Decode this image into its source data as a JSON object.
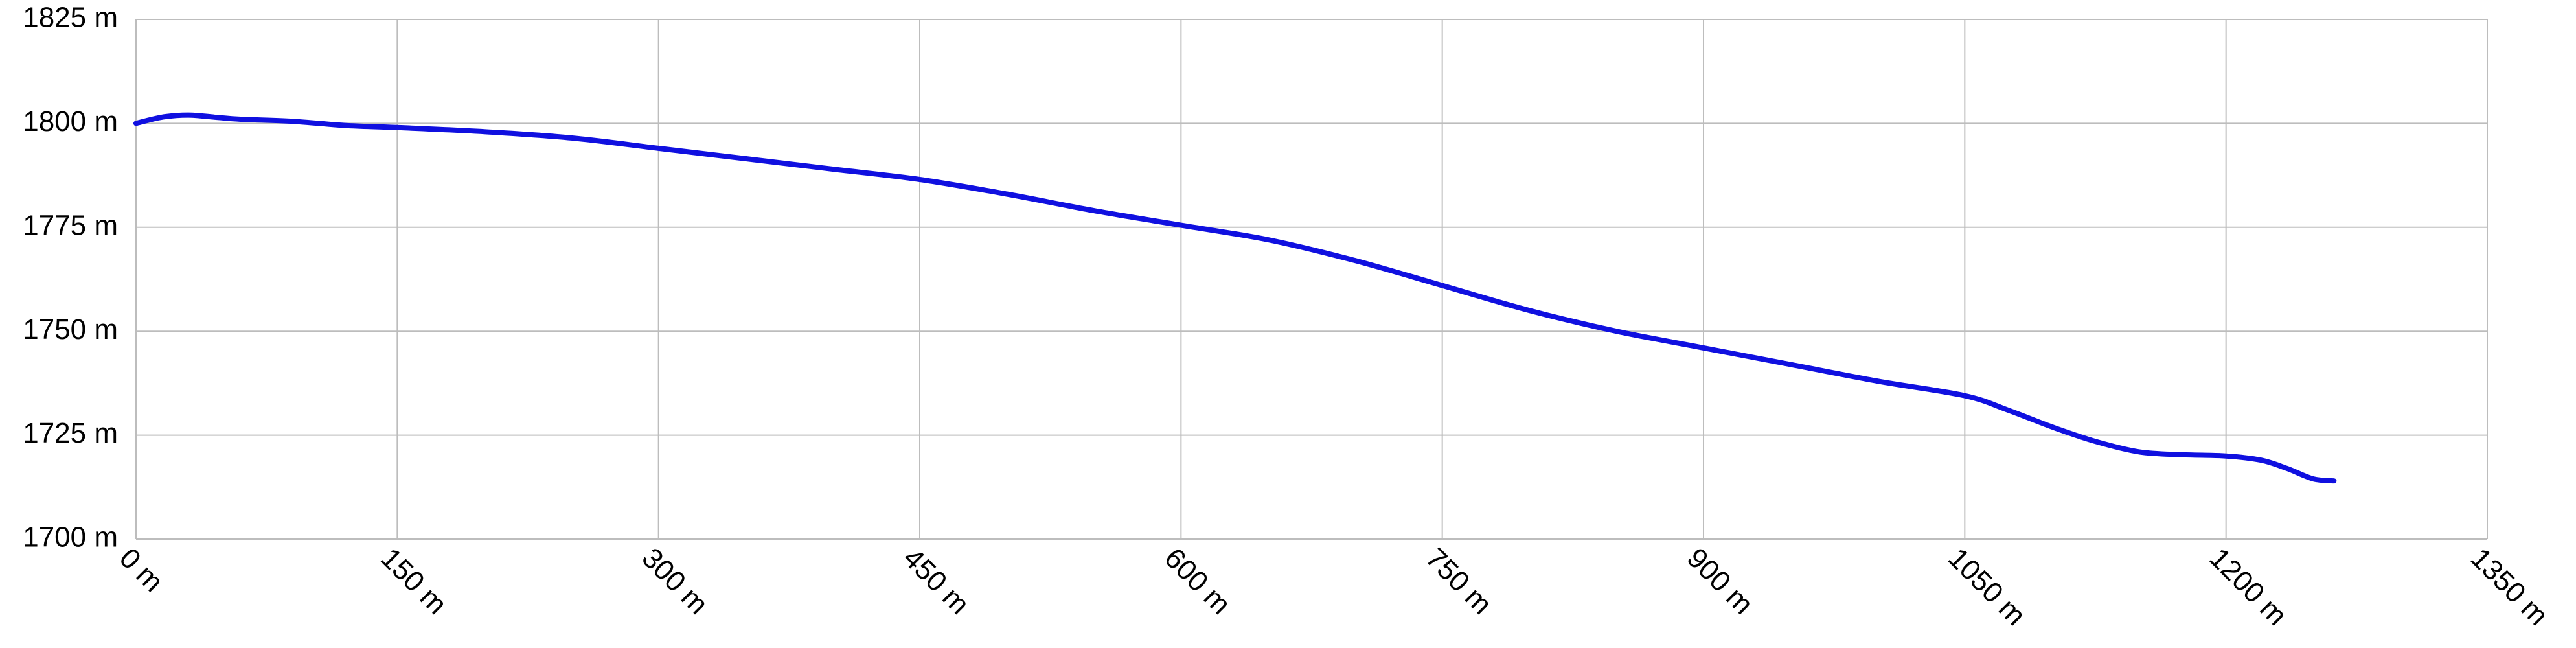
{
  "chart_data": {
    "type": "line",
    "title": "",
    "xlabel": "",
    "ylabel": "",
    "xlim": [
      0,
      1350
    ],
    "ylim": [
      1700,
      1825
    ],
    "x_ticks": [
      0,
      150,
      300,
      450,
      600,
      750,
      900,
      1050,
      1200,
      1350
    ],
    "y_ticks": [
      1700,
      1725,
      1750,
      1775,
      1800,
      1825
    ],
    "x_tick_labels": [
      "0 m",
      "150 m",
      "300 m",
      "450 m",
      "600 m",
      "750 m",
      "900 m",
      "1050 m",
      "1200 m",
      "1350 m"
    ],
    "y_tick_labels": [
      "1700 m",
      "1725 m",
      "1750 m",
      "1775 m",
      "1800 m",
      "1825 m"
    ],
    "grid": true,
    "line_color": "#1010e0",
    "series": [
      {
        "x": [
          0,
          15,
          30,
          45,
          60,
          90,
          120,
          150,
          200,
          250,
          300,
          350,
          400,
          450,
          500,
          550,
          600,
          650,
          700,
          750,
          800,
          850,
          900,
          950,
          1000,
          1050,
          1075,
          1100,
          1125,
          1150,
          1175,
          1200,
          1220,
          1235,
          1250,
          1262
        ],
        "y": [
          1800,
          1801.5,
          1802,
          1801.5,
          1801,
          1800.5,
          1799.5,
          1799,
          1798,
          1796.5,
          1794,
          1791.5,
          1789,
          1786.5,
          1783,
          1779,
          1775.5,
          1772,
          1767,
          1761,
          1755,
          1750,
          1746,
          1742,
          1738,
          1734.5,
          1731,
          1727,
          1723.5,
          1721,
          1720.3,
          1720,
          1719,
          1717,
          1714.5,
          1714
        ]
      }
    ]
  }
}
